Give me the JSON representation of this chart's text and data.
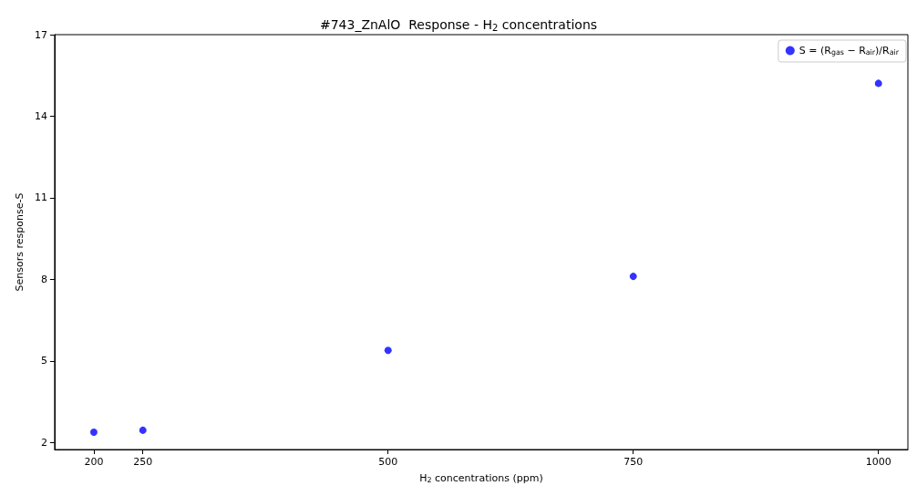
{
  "chart_data": {
    "type": "scatter",
    "title": "#743_ZnAlO  Response - H$_{2}$ concentrations",
    "xlabel": "H$_{2}$ concentrations (ppm)",
    "ylabel": "Sensors response-S",
    "x": [
      200,
      250,
      500,
      750,
      1000
    ],
    "series": [
      {
        "name": "S = (R$_{gas}$ − R$_{air}$)/R$_{air}$",
        "color": "#0000ff",
        "values": [
          2.38,
          2.45,
          5.39,
          8.11,
          15.21
        ]
      }
    ],
    "xlim": [
      160,
      1030
    ],
    "xticks": [
      200,
      250,
      500,
      750,
      1000
    ],
    "ylim": [
      1.74,
      17
    ],
    "yticks": [
      2,
      5,
      8,
      11,
      14,
      17
    ],
    "grid": false,
    "legend": "top right",
    "marker": "circle"
  }
}
